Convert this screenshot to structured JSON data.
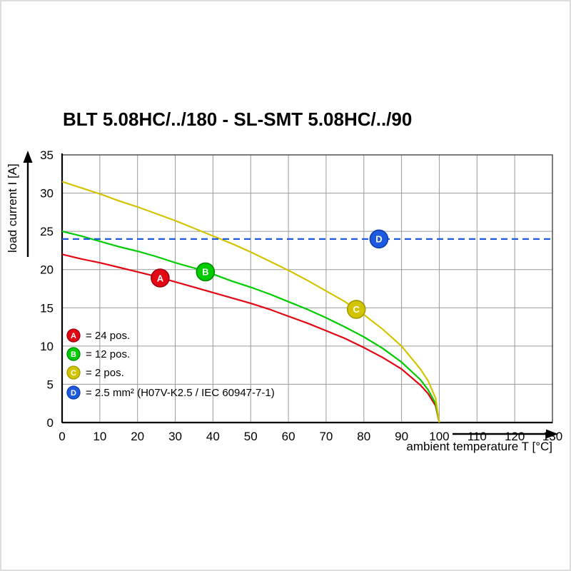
{
  "page": {
    "title": "BLT 5.08HC/../180 - SL-SMT 5.08HC/../90"
  },
  "chart_data": {
    "type": "line",
    "title": "BLT 5.08HC/../180 - SL-SMT 5.08HC/../90",
    "xlabel": "ambient temperature T [°C]",
    "ylabel": "load current I [A]",
    "xlim": [
      0,
      130
    ],
    "ylim": [
      0,
      35
    ],
    "xticks": [
      0,
      10,
      20,
      30,
      40,
      50,
      60,
      70,
      80,
      90,
      100,
      110,
      120,
      130
    ],
    "yticks": [
      0,
      5,
      10,
      15,
      20,
      25,
      30,
      35
    ],
    "grid": true,
    "grid_color": "#9a9a9a",
    "legend_position": "lower-left-inside",
    "series": [
      {
        "id": "A",
        "name": "24 pos.",
        "legend_label": "= 24 pos.",
        "color": "#e30613",
        "edge": "#9b0012",
        "style": "solid",
        "marker_at": [
          26,
          18.9
        ],
        "points": [
          [
            0,
            22
          ],
          [
            5,
            21.4
          ],
          [
            10,
            20.9
          ],
          [
            15,
            20.3
          ],
          [
            20,
            19.7
          ],
          [
            25,
            19.1
          ],
          [
            30,
            18.4
          ],
          [
            35,
            17.7
          ],
          [
            40,
            17
          ],
          [
            45,
            16.3
          ],
          [
            50,
            15.6
          ],
          [
            55,
            14.8
          ],
          [
            60,
            13.9
          ],
          [
            65,
            13
          ],
          [
            70,
            12
          ],
          [
            75,
            11
          ],
          [
            80,
            9.8
          ],
          [
            85,
            8.5
          ],
          [
            90,
            7
          ],
          [
            95,
            4.9
          ],
          [
            97,
            3.8
          ],
          [
            99,
            2.2
          ],
          [
            100,
            0
          ]
        ]
      },
      {
        "id": "B",
        "name": "12 pos.",
        "legend_label": "= 12 pos.",
        "color": "#00cc00",
        "edge": "#008a00",
        "style": "solid",
        "marker_at": [
          38,
          19.7
        ],
        "points": [
          [
            0,
            25
          ],
          [
            5,
            24.4
          ],
          [
            10,
            23.7
          ],
          [
            15,
            23
          ],
          [
            20,
            22.4
          ],
          [
            25,
            21.7
          ],
          [
            30,
            20.9
          ],
          [
            35,
            20.2
          ],
          [
            40,
            19.4
          ],
          [
            45,
            18.5
          ],
          [
            50,
            17.7
          ],
          [
            55,
            16.8
          ],
          [
            60,
            15.8
          ],
          [
            65,
            14.8
          ],
          [
            70,
            13.7
          ],
          [
            75,
            12.5
          ],
          [
            80,
            11.2
          ],
          [
            85,
            9.7
          ],
          [
            90,
            7.9
          ],
          [
            95,
            5.6
          ],
          [
            97,
            4.3
          ],
          [
            99,
            2.5
          ],
          [
            100,
            0
          ]
        ]
      },
      {
        "id": "C",
        "name": "2 pos.",
        "legend_label": "= 2 pos.",
        "color": "#d2c400",
        "edge": "#a39a00",
        "style": "solid",
        "marker_at": [
          78,
          14.8
        ],
        "points": [
          [
            0,
            31.5
          ],
          [
            5,
            30.7
          ],
          [
            10,
            29.9
          ],
          [
            15,
            29
          ],
          [
            20,
            28.2
          ],
          [
            25,
            27.3
          ],
          [
            30,
            26.4
          ],
          [
            35,
            25.4
          ],
          [
            40,
            24.4
          ],
          [
            45,
            23.4
          ],
          [
            50,
            22.3
          ],
          [
            55,
            21.1
          ],
          [
            60,
            19.9
          ],
          [
            65,
            18.6
          ],
          [
            70,
            17.2
          ],
          [
            75,
            15.8
          ],
          [
            80,
            14.1
          ],
          [
            85,
            12.2
          ],
          [
            90,
            10
          ],
          [
            95,
            7
          ],
          [
            97,
            5.5
          ],
          [
            99,
            3.2
          ],
          [
            100,
            0
          ]
        ]
      },
      {
        "id": "D",
        "name": "2.5 mm² (H07V-K2.5 / IEC 60947-7-1)",
        "legend_label": "= 2.5 mm² (H07V-K2.5 / IEC 60947-7-1)",
        "color": "#1e5ae0",
        "edge": "#0d3fae",
        "style": "dashed",
        "marker_at": [
          84,
          24
        ],
        "points": [
          [
            0,
            24
          ],
          [
            130,
            24
          ]
        ]
      }
    ]
  }
}
